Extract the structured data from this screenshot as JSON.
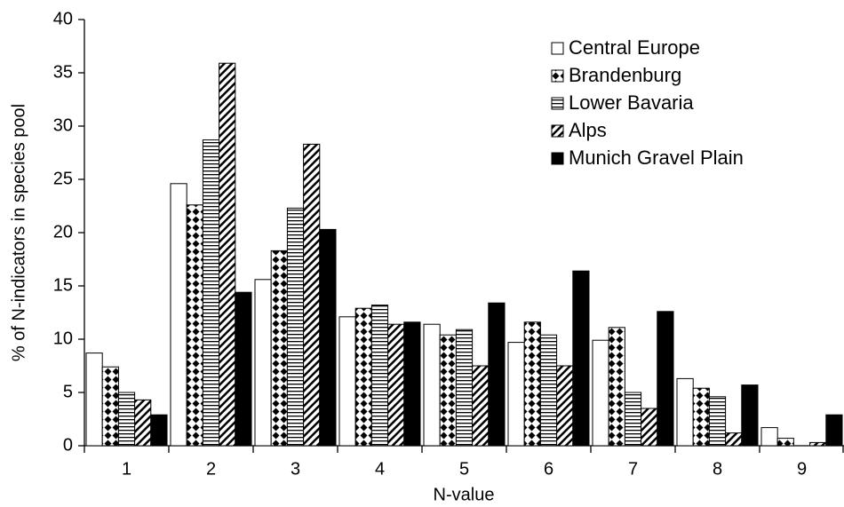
{
  "chart_data": {
    "type": "bar",
    "x_label": "N-value",
    "y_label": "% of N-indicators in species pool",
    "categories": [
      "1",
      "2",
      "3",
      "4",
      "5",
      "6",
      "7",
      "8",
      "9"
    ],
    "ylim": [
      0,
      40
    ],
    "yticks": [
      0,
      5,
      10,
      15,
      20,
      25,
      30,
      35,
      40
    ],
    "legend": "top-right",
    "series": [
      {
        "name": "Central Europe",
        "color": "#ffffff",
        "pattern": "solid",
        "values": [
          8.7,
          24.6,
          15.6,
          12.1,
          11.4,
          9.7,
          9.9,
          6.3,
          1.7
        ]
      },
      {
        "name": "Brandenburg",
        "color": "#000000",
        "pattern": "diamonds",
        "values": [
          7.4,
          22.6,
          18.3,
          12.9,
          10.4,
          11.6,
          11.1,
          5.4,
          0.7
        ]
      },
      {
        "name": "Lower Bavaria",
        "color": "#000000",
        "pattern": "horizontal",
        "values": [
          5.0,
          28.7,
          22.3,
          13.2,
          10.9,
          10.4,
          5.0,
          4.6,
          0
        ]
      },
      {
        "name": "Alps",
        "color": "#000000",
        "pattern": "diagonal",
        "values": [
          4.3,
          35.9,
          28.3,
          11.4,
          7.5,
          7.5,
          3.5,
          1.2,
          0.3
        ]
      },
      {
        "name": "Munich Gravel Plain",
        "color": "#000000",
        "pattern": "solid",
        "values": [
          2.9,
          14.4,
          20.3,
          11.6,
          13.4,
          16.4,
          12.6,
          5.7,
          2.9
        ]
      }
    ]
  }
}
